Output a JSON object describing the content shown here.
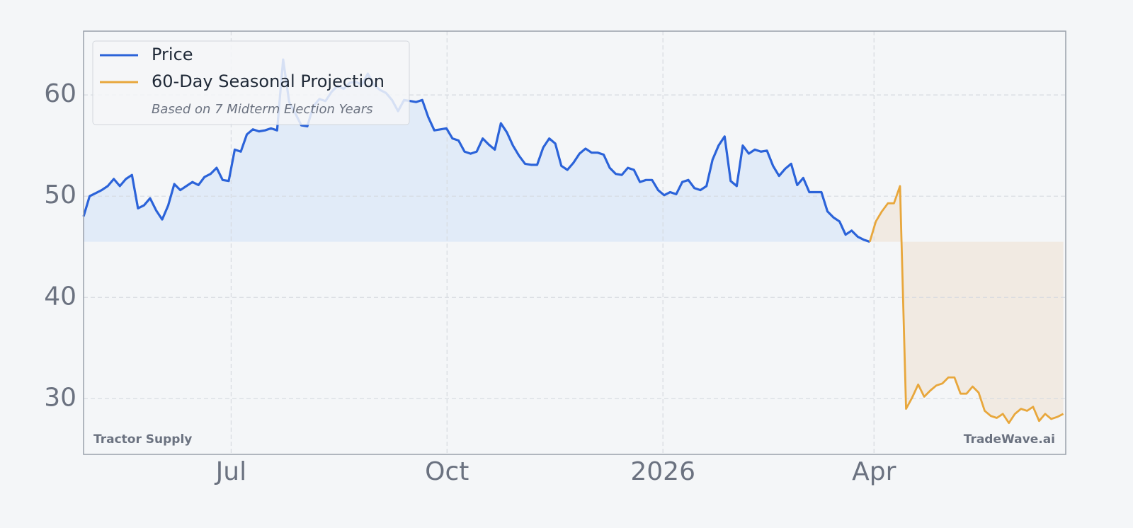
{
  "chart_data": {
    "type": "line",
    "legend": "upper left",
    "legend_note": "Based on 7 Midterm Election Years",
    "source_label": "Tractor Supply",
    "watermark": "TradeWave.ai",
    "grid": true,
    "xlim": [
      0,
      162.4
    ],
    "xticks": [
      {
        "value": 24.4,
        "label": "Jul"
      },
      {
        "value": 60.1,
        "label": "Oct"
      },
      {
        "value": 95.8,
        "label": "2026"
      },
      {
        "value": 130.7,
        "label": "Apr"
      }
    ],
    "ylim": [
      24.5,
      66.3
    ],
    "yticks": [
      30,
      40,
      50,
      60
    ],
    "series": [
      {
        "name": "Price",
        "color": "#2b63d9",
        "fill": "#dfeaf7",
        "values": [
          48.0,
          50.0,
          50.3,
          50.6,
          51.0,
          51.7,
          51.0,
          51.7,
          52.1,
          48.8,
          49.1,
          49.8,
          48.6,
          47.7,
          49.1,
          51.2,
          50.6,
          51.0,
          51.4,
          51.1,
          51.9,
          52.2,
          52.8,
          51.6,
          51.5,
          54.6,
          54.4,
          56.1,
          56.6,
          56.4,
          56.5,
          56.7,
          56.5,
          63.5,
          59.3,
          58.2,
          57.0,
          56.9,
          58.9,
          59.6,
          59.4,
          60.3,
          60.9,
          60.6,
          61.2,
          61.3,
          61.0,
          62.1,
          61.0,
          60.5,
          60.2,
          59.5,
          58.4,
          59.5,
          59.4,
          59.3,
          59.5,
          57.8,
          56.5,
          56.6,
          56.7,
          55.7,
          55.5,
          54.4,
          54.2,
          54.4,
          55.7,
          55.1,
          54.6,
          57.2,
          56.3,
          55.0,
          54.0,
          53.2,
          53.1,
          53.1,
          54.8,
          55.7,
          55.2,
          53.0,
          52.6,
          53.3,
          54.2,
          54.7,
          54.3,
          54.3,
          54.1,
          52.8,
          52.2,
          52.1,
          52.8,
          52.6,
          51.4,
          51.6,
          51.6,
          50.6,
          50.1,
          50.4,
          50.2,
          51.4,
          51.6,
          50.8,
          50.6,
          51.0,
          53.6,
          55.0,
          55.9,
          51.5,
          51.0,
          55.0,
          54.2,
          54.6,
          54.4,
          54.5,
          53.0,
          52.0,
          52.7,
          53.2,
          51.1,
          51.8,
          50.4,
          50.4,
          50.4,
          48.5,
          47.9,
          47.5,
          46.2,
          46.6,
          46.0,
          45.7,
          45.5,
          null,
          null,
          null,
          null,
          null,
          null,
          null,
          null,
          null,
          null,
          null,
          null,
          null,
          null,
          null,
          null,
          null,
          null,
          null,
          null,
          null,
          null,
          null,
          null,
          null,
          null,
          null,
          null,
          null,
          null,
          null,
          null
        ]
      },
      {
        "name": "60-Day Seasonal Projection",
        "color": "#e8a73c",
        "fill": "#f1e9df",
        "values": [
          null,
          null,
          null,
          null,
          null,
          null,
          null,
          null,
          null,
          null,
          null,
          null,
          null,
          null,
          null,
          null,
          null,
          null,
          null,
          null,
          null,
          null,
          null,
          null,
          null,
          null,
          null,
          null,
          null,
          null,
          null,
          null,
          null,
          null,
          null,
          null,
          null,
          null,
          null,
          null,
          null,
          null,
          null,
          null,
          null,
          null,
          null,
          null,
          null,
          null,
          null,
          null,
          null,
          null,
          null,
          null,
          null,
          null,
          null,
          null,
          null,
          null,
          null,
          null,
          null,
          null,
          null,
          null,
          null,
          null,
          null,
          null,
          null,
          null,
          null,
          null,
          null,
          null,
          null,
          null,
          null,
          null,
          null,
          null,
          null,
          null,
          null,
          null,
          null,
          null,
          null,
          null,
          null,
          null,
          null,
          null,
          null,
          null,
          null,
          null,
          null,
          null,
          null,
          null,
          null,
          null,
          null,
          null,
          null,
          null,
          null,
          null,
          null,
          null,
          null,
          null,
          null,
          null,
          null,
          null,
          null,
          null,
          null,
          null,
          null,
          null,
          null,
          null,
          null,
          null,
          45.5,
          47.5,
          48.5,
          49.3,
          49.3,
          51.0,
          29.0,
          30.1,
          31.4,
          30.2,
          30.8,
          31.3,
          31.5,
          32.1,
          32.1,
          30.5,
          30.5,
          31.2,
          30.6,
          28.8,
          28.3,
          28.1,
          28.5,
          27.6,
          28.5,
          29.0,
          28.8,
          29.2,
          27.8,
          28.5,
          28.0,
          28.2,
          28.5
        ]
      }
    ]
  }
}
